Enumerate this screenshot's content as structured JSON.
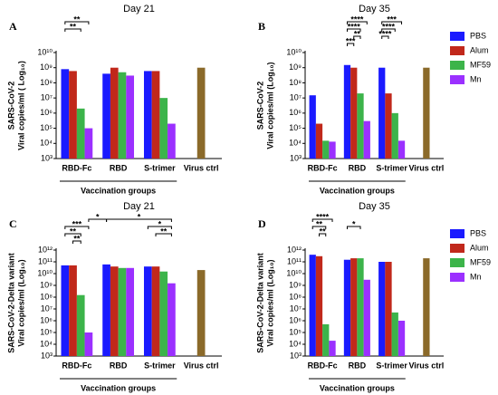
{
  "chart_data": [
    {
      "type": "bar",
      "letter": "A",
      "title": "Day 21",
      "log_scale": true,
      "ylabel": [
        "SARS-CoV-2",
        "Viral copies/ml ( Log₁₀)"
      ],
      "xlabel": "Vaccination groups",
      "categories": [
        "RBD-Fc",
        "RBD",
        "S-trimer",
        "Virus ctrl"
      ],
      "ylim": [
        1000,
        10000000000
      ],
      "yticks": [
        {
          "value": 1000,
          "label": "10³"
        },
        {
          "value": 10000,
          "label": "10⁴"
        },
        {
          "value": 100000,
          "label": "10⁵"
        },
        {
          "value": 1000000,
          "label": "10⁶"
        },
        {
          "value": 10000000,
          "label": "10⁷"
        },
        {
          "value": 100000000,
          "label": "10⁸"
        },
        {
          "value": 1000000000,
          "label": "10⁹"
        },
        {
          "value": 10000000000,
          "label": "10¹⁰"
        }
      ],
      "series": [
        {
          "color": "#1a1aff",
          "values": [
            800000000,
            400000000,
            600000000,
            null
          ]
        },
        {
          "color": "#c1281b",
          "values": [
            600000000,
            1000000000,
            600000000,
            null
          ]
        },
        {
          "color": "#3cb44a",
          "values": [
            2000000,
            500000000,
            10000000,
            null
          ]
        },
        {
          "color": "#9b30ff",
          "values": [
            100000,
            300000000,
            200000,
            null
          ]
        }
      ],
      "control": {
        "value": 1000000000,
        "color": "#8b6a2a"
      },
      "annotations": [
        "**",
        "**"
      ]
    },
    {
      "type": "bar",
      "letter": "B",
      "title": "Day 35",
      "log_scale": true,
      "legend": "right",
      "ylabel": [
        "SARS-CoV-2",
        "Viral copies/ml (Log₁₀)"
      ],
      "xlabel": "Vaccination groups",
      "categories": [
        "RBD-Fc",
        "RBD",
        "S-trimer",
        "Virus ctrl"
      ],
      "ylim": [
        1000,
        10000000000
      ],
      "yticks": [
        {
          "value": 1000,
          "label": "10³"
        },
        {
          "value": 10000,
          "label": "10⁴"
        },
        {
          "value": 100000,
          "label": "10⁵"
        },
        {
          "value": 1000000,
          "label": "10⁶"
        },
        {
          "value": 10000000,
          "label": "10⁷"
        },
        {
          "value": 100000000,
          "label": "10⁸"
        },
        {
          "value": 1000000000,
          "label": "10⁹"
        },
        {
          "value": 10000000000,
          "label": "10¹⁰"
        }
      ],
      "series": [
        {
          "name": "PBS",
          "color": "#1a1aff",
          "values": [
            15000000,
            1500000000,
            1000000000,
            null
          ]
        },
        {
          "name": "Alum",
          "color": "#c1281b",
          "values": [
            200000,
            1000000000,
            20000000,
            null
          ]
        },
        {
          "name": "MF59",
          "color": "#3cb44a",
          "values": [
            15000,
            20000000,
            1000000,
            null
          ]
        },
        {
          "name": "Mn",
          "color": "#9b30ff",
          "values": [
            13000,
            300000,
            15000,
            null
          ]
        }
      ],
      "control": {
        "value": 1000000000,
        "color": "#8b6a2a"
      },
      "annotations": [
        "****",
        "****",
        "**",
        "***",
        "***",
        "****",
        "****"
      ]
    },
    {
      "type": "bar",
      "letter": "C",
      "title": "Day 21",
      "log_scale": true,
      "ylabel": [
        "SARS-CoV-2-Delta variant",
        "Viral copies/ml (Log₁₀)"
      ],
      "xlabel": "Vaccination groups",
      "categories": [
        "RBD-Fc",
        "RBD",
        "S-trimer",
        "Virus ctrl"
      ],
      "ylim": [
        1000,
        1000000000000
      ],
      "yticks": [
        {
          "value": 1000,
          "label": "10³"
        },
        {
          "value": 10000,
          "label": "10⁴"
        },
        {
          "value": 100000,
          "label": "10⁵"
        },
        {
          "value": 1000000,
          "label": "10⁶"
        },
        {
          "value": 10000000,
          "label": "10⁷"
        },
        {
          "value": 100000000,
          "label": "10⁸"
        },
        {
          "value": 1000000000,
          "label": "10⁹"
        },
        {
          "value": 10000000000,
          "label": "10¹⁰"
        },
        {
          "value": 100000000000,
          "label": "10¹¹"
        },
        {
          "value": 1000000000000,
          "label": "10¹²"
        }
      ],
      "series": [
        {
          "color": "#1a1aff",
          "values": [
            50000000000,
            60000000000,
            40000000000,
            null
          ]
        },
        {
          "color": "#c1281b",
          "values": [
            50000000000,
            40000000000,
            40000000000,
            null
          ]
        },
        {
          "color": "#3cb44a",
          "values": [
            150000000,
            30000000000,
            15000000000,
            null
          ]
        },
        {
          "color": "#9b30ff",
          "values": [
            100000,
            30000000000,
            1500000000,
            null
          ]
        }
      ],
      "control": {
        "value": 20000000000,
        "color": "#8b6a2a"
      },
      "annotations": [
        "***",
        "**",
        "**",
        "*",
        "*",
        "*",
        "**"
      ]
    },
    {
      "type": "bar",
      "letter": "D",
      "title": "Day 35",
      "log_scale": true,
      "legend": "right",
      "ylabel": [
        "SARS-CoV-2-Delta variant",
        "Viral copies/ml (Log₁₀)"
      ],
      "xlabel": "Vaccination groups",
      "categories": [
        "RBD-Fc",
        "RBD",
        "S-trimer",
        "Virus ctrl"
      ],
      "ylim": [
        1000,
        1000000000000
      ],
      "yticks": [
        {
          "value": 1000,
          "label": "10³"
        },
        {
          "value": 10000,
          "label": "10⁴"
        },
        {
          "value": 100000,
          "label": "10⁵"
        },
        {
          "value": 1000000,
          "label": "10⁶"
        },
        {
          "value": 10000000,
          "label": "10⁷"
        },
        {
          "value": 100000000,
          "label": "10⁸"
        },
        {
          "value": 1000000000,
          "label": "10⁹"
        },
        {
          "value": 10000000000,
          "label": "10¹⁰"
        },
        {
          "value": 100000000000,
          "label": "10¹¹"
        },
        {
          "value": 1000000000000,
          "label": "10¹²"
        }
      ],
      "series": [
        {
          "name": "PBS",
          "color": "#1a1aff",
          "values": [
            400000000000,
            150000000000,
            100000000000,
            null
          ]
        },
        {
          "name": "Alum",
          "color": "#c1281b",
          "values": [
            300000000000,
            200000000000,
            100000000000,
            null
          ]
        },
        {
          "name": "MF59",
          "color": "#3cb44a",
          "values": [
            500000,
            200000000000,
            5000000,
            null
          ]
        },
        {
          "name": "Mn",
          "color": "#9b30ff",
          "values": [
            20000,
            3000000000,
            1000000,
            null
          ]
        }
      ],
      "control": {
        "value": 200000000000,
        "color": "#8b6a2a"
      },
      "annotations": [
        "****",
        "**",
        "**",
        "*"
      ]
    }
  ]
}
